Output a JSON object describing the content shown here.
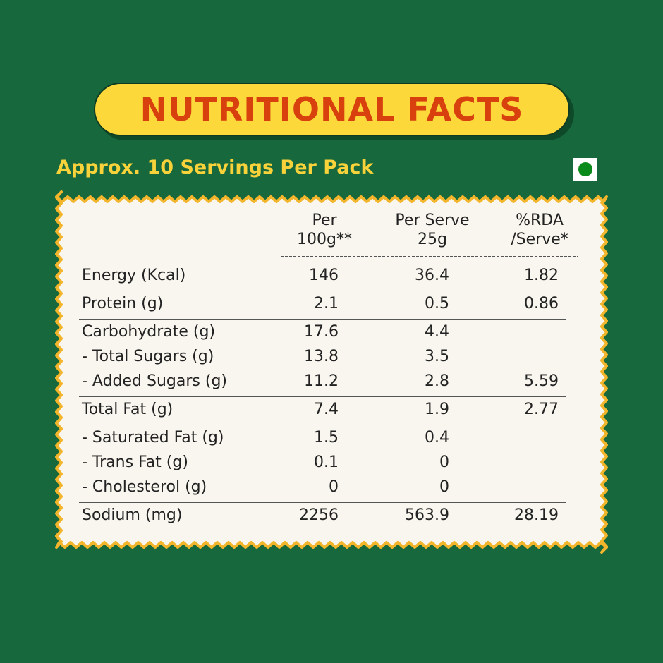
{
  "title": "NUTRITIONAL FACTS",
  "subtitle": "Approx. 10 Servings Per Pack",
  "table": {
    "headers": [
      [
        "Per",
        "100g**"
      ],
      [
        "Per Serve",
        "25g"
      ],
      [
        "%RDA",
        "/Serve*"
      ]
    ],
    "groups": [
      {
        "rows": [
          {
            "label": "Energy (Kcal)",
            "per100g": "146",
            "perServe": "36.4",
            "rda": "1.82"
          }
        ]
      },
      {
        "rows": [
          {
            "label": "Protein (g)",
            "per100g": "2.1",
            "perServe": "0.5",
            "rda": "0.86"
          }
        ]
      },
      {
        "rows": [
          {
            "label": "Carbohydrate (g)",
            "per100g": "17.6",
            "perServe": "4.4"
          },
          {
            "label": "- Total Sugars (g)",
            "per100g": "13.8",
            "perServe": "3.5"
          },
          {
            "label": "- Added Sugars (g)",
            "per100g": "11.2",
            "perServe": "2.8",
            "rda": "5.59"
          }
        ]
      },
      {
        "rows": [
          {
            "label": "Total Fat (g)",
            "per100g": "7.4",
            "perServe": "1.9",
            "rda": "2.77"
          }
        ]
      },
      {
        "rows": [
          {
            "label": "- Saturated Fat (g)",
            "per100g": "1.5",
            "perServe": "0.4"
          },
          {
            "label": "- Trans Fat (g)",
            "per100g": "0.1",
            "perServe": "0"
          },
          {
            "label": "- Cholesterol (g)",
            "per100g": "0",
            "perServe": "0"
          }
        ]
      },
      {
        "rows": [
          {
            "label": "Sodium (mg)",
            "per100g": "2256",
            "perServe": "563.9",
            "rda": "28.19"
          }
        ]
      }
    ]
  }
}
